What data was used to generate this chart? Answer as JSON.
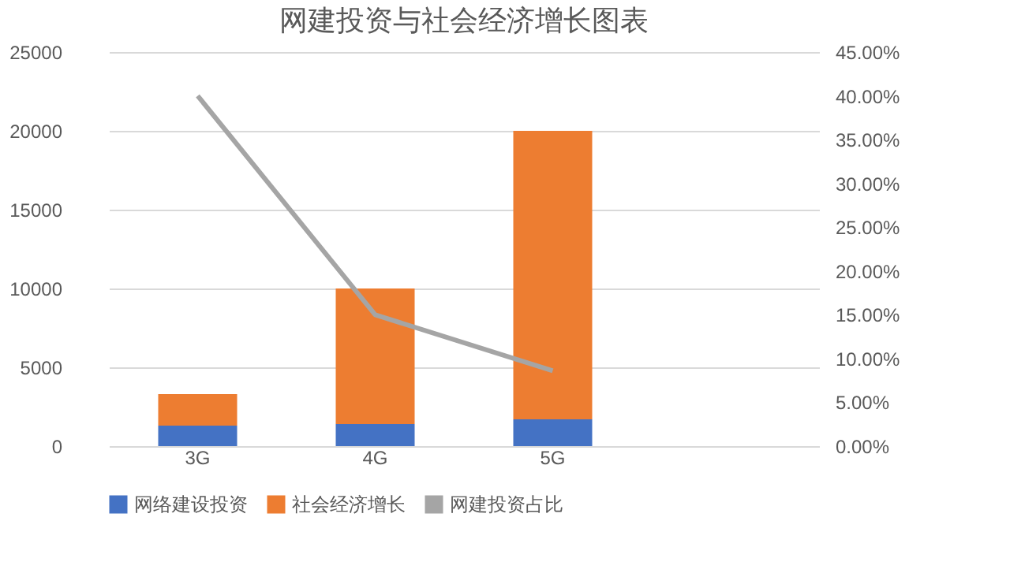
{
  "chart_data": {
    "type": "bar",
    "title": "网建投资与社会经济增长图表",
    "categories": [
      "3G",
      "4G",
      "5G",
      null
    ],
    "stacked": true,
    "series": [
      {
        "name": "网络建设投资",
        "color": "#4472c4",
        "values": [
          1300,
          1400,
          1700,
          null
        ]
      },
      {
        "name": "社会经济增长",
        "color": "#ed7d31",
        "values": [
          2000,
          8600,
          18300,
          null
        ]
      },
      {
        "name": "网建投资占比",
        "type": "line",
        "axis": "y2",
        "color": "#a5a5a5",
        "values": [
          40,
          15,
          8.6,
          null
        ]
      }
    ],
    "ylim": [
      0,
      25000
    ],
    "yticks": [
      0,
      5000,
      10000,
      15000,
      20000,
      25000
    ],
    "y2lim": [
      0,
      45
    ],
    "y2ticks": [
      {
        "value": 0,
        "label": "0.00%"
      },
      {
        "value": 5,
        "label": "5.00%"
      },
      {
        "value": 10,
        "label": "10.00%"
      },
      {
        "value": 15,
        "label": "15.00%"
      },
      {
        "value": 20,
        "label": "20.00%"
      },
      {
        "value": 25,
        "label": "25.00%"
      },
      {
        "value": 30,
        "label": "30.00%"
      },
      {
        "value": 35,
        "label": "35.00%"
      },
      {
        "value": 40,
        "label": "40.00%"
      },
      {
        "value": 45,
        "label": "45.00%"
      }
    ],
    "grid": "y",
    "legend": "bottom"
  }
}
